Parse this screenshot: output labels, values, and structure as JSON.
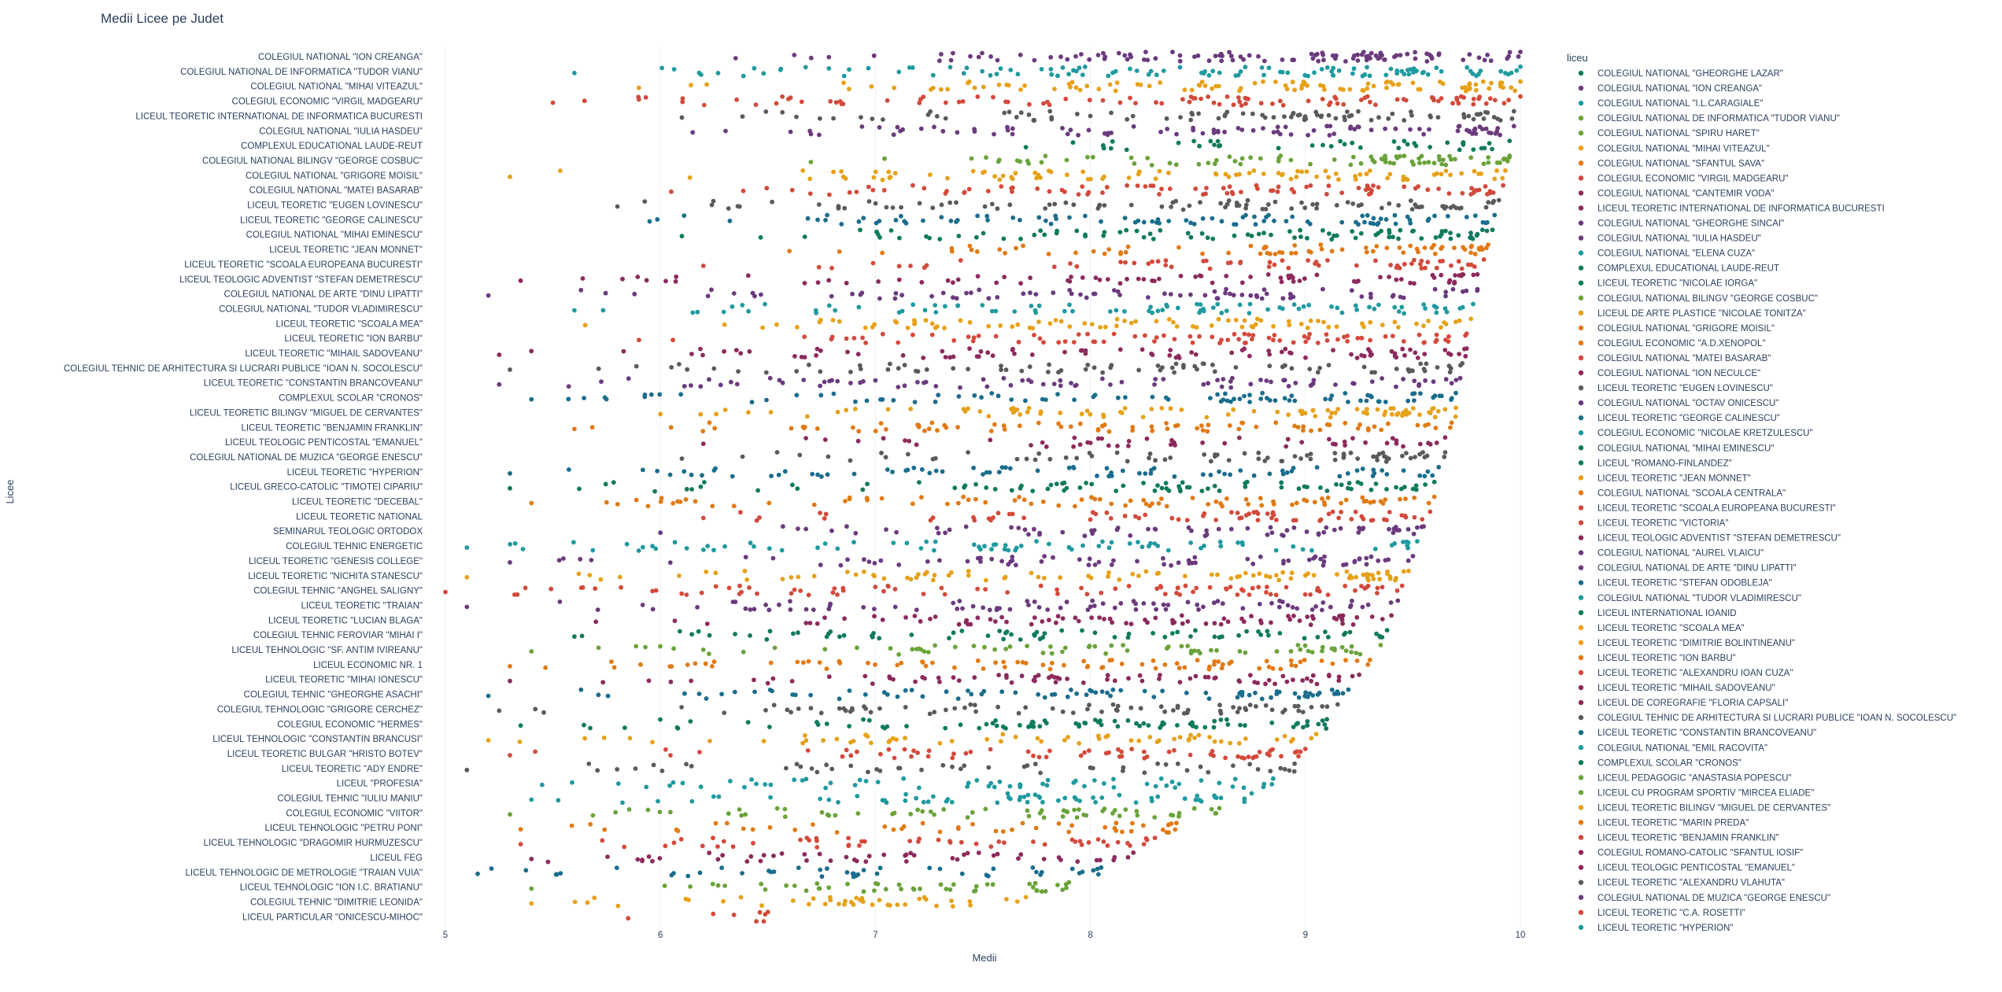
{
  "chart_data": {
    "type": "scatter",
    "title": "Medii Licee pe Judet",
    "xlabel": "Medii",
    "ylabel": "Licee",
    "xlim": [
      5,
      10
    ],
    "xticks": [
      "5",
      "6",
      "7",
      "8",
      "9",
      "10"
    ],
    "grid": "vertical gridlines only",
    "legend_placement": "right",
    "legend_title": "liceu",
    "palette": [
      "#6b3a7d",
      "#1f9aa0",
      "#1a6d8c",
      "#0f7a5c",
      "#6aa33a",
      "#e6a118",
      "#e07a14",
      "#d24a3c",
      "#8c2a5c",
      "#5a5a5a"
    ],
    "categories": [
      "COLEGIUL NATIONAL \"ION CREANGA\"",
      "COLEGIUL NATIONAL DE INFORMATICA \"TUDOR VIANU\"",
      "COLEGIUL NATIONAL \"MIHAI VITEAZUL\"",
      "COLEGIUL ECONOMIC \"VIRGIL MADGEARU\"",
      "LICEUL TEORETIC INTERNATIONAL DE INFORMATICA BUCURESTI",
      "COLEGIUL NATIONAL \"IULIA HASDEU\"",
      "COMPLEXUL EDUCATIONAL LAUDE-REUT",
      "COLEGIUL NATIONAL BILINGV \"GEORGE COSBUC\"",
      "COLEGIUL NATIONAL \"GRIGORE MOISIL\"",
      "COLEGIUL NATIONAL \"MATEI BASARAB\"",
      "LICEUL TEORETIC \"EUGEN LOVINESCU\"",
      "LICEUL TEORETIC \"GEORGE CALINESCU\"",
      "COLEGIUL NATIONAL \"MIHAI EMINESCU\"",
      "LICEUL TEORETIC \"JEAN MONNET\"",
      "LICEUL TEORETIC \"SCOALA EUROPEANA BUCURESTI\"",
      "LICEUL TEOLOGIC ADVENTIST \"STEFAN DEMETRESCU\"",
      "COLEGIUL NATIONAL DE ARTE \"DINU LIPATTI\"",
      "COLEGIUL NATIONAL \"TUDOR VLADIMIRESCU\"",
      "LICEUL TEORETIC \"SCOALA MEA\"",
      "LICEUL TEORETIC \"ION BARBU\"",
      "LICEUL TEORETIC \"MIHAIL SADOVEANU\"",
      "COLEGIUL TEHNIC DE ARHITECTURA SI LUCRARI PUBLICE \"IOAN N. SOCOLESCU\"",
      "LICEUL TEORETIC \"CONSTANTIN BRANCOVEANU\"",
      "COMPLEXUL SCOLAR \"CRONOS\"",
      "LICEUL TEORETIC BILINGV \"MIGUEL DE CERVANTES\"",
      "LICEUL TEORETIC \"BENJAMIN FRANKLIN\"",
      "LICEUL TEOLOGIC PENTICOSTAL \"EMANUEL\"",
      "COLEGIUL NATIONAL DE MUZICA \"GEORGE ENESCU\"",
      "LICEUL TEORETIC \"HYPERION\"",
      "LICEUL GRECO-CATOLIC \"TIMOTEI CIPARIU\"",
      "LICEUL TEORETIC \"DECEBAL\"",
      "LICEUL TEORETIC NATIONAL",
      "SEMINARUL TEOLOGIC ORTODOX",
      "COLEGIUL TEHNIC ENERGETIC",
      "LICEUL TEORETIC \"GENESIS COLLEGE\"",
      "LICEUL TEORETIC \"NICHITA STANESCU\"",
      "COLEGIUL TEHNIC \"ANGHEL SALIGNY\"",
      "LICEUL TEORETIC \"TRAIAN\"",
      "LICEUL TEORETIC \"LUCIAN BLAGA\"",
      "COLEGIUL TEHNIC FEROVIAR \"MIHAI I\"",
      "LICEUL TEHNOLOGIC \"SF. ANTIM IVIREANU\"",
      "LICEUL ECONOMIC NR. 1",
      "LICEUL TEORETIC \"MIHAI IONESCU\"",
      "COLEGIUL TEHNIC \"GHEORGHE ASACHI\"",
      "COLEGIUL TEHNOLOGIC \"GRIGORE CERCHEZ\"",
      "COLEGIUL ECONOMIC \"HERMES\"",
      "LICEUL TEHNOLOGIC \"CONSTANTIN BRANCUSI\"",
      "LICEUL TEORETIC BULGAR \"HRISTO BOTEV\"",
      "LICEUL TEORETIC \"ADY ENDRE\"",
      "LICEUL \"PROFESIA\"",
      "COLEGIUL TEHNIC \"IULIU MANIU\"",
      "COLEGIUL ECONOMIC \"VIITOR\"",
      "LICEUL TEHNOLOGIC \"PETRU PONI\"",
      "LICEUL TEHNOLOGIC \"DRAGOMIR HURMUZESCU\"",
      "LICEUL FEG",
      "LICEUL TEHNOLOGIC DE METROLOGIE \"TRAIAN VUIA\"",
      "LICEUL TEHNOLOGIC \"ION I.C. BRATIANU\"",
      "COLEGIUL TEHNIC \"DIMITRIE LEONIDA\"",
      "LICEUL PARTICULAR \"ONICESCU-MIHOC\""
    ],
    "rows": [
      {
        "c": 0,
        "max": 10.0,
        "min": 6.35,
        "n": 110
      },
      {
        "c": 1,
        "max": 10.0,
        "min": 5.6,
        "n": 110
      },
      {
        "c": 5,
        "max": 10.0,
        "min": 5.9,
        "n": 100
      },
      {
        "c": 7,
        "max": 10.0,
        "min": 5.5,
        "n": 100
      },
      {
        "c": 9,
        "max": 9.97,
        "min": 6.1,
        "n": 90
      },
      {
        "c": 0,
        "max": 9.97,
        "min": 6.15,
        "n": 90
      },
      {
        "c": 3,
        "max": 9.95,
        "min": 7.7,
        "n": 40
      },
      {
        "c": 4,
        "max": 9.95,
        "min": 6.7,
        "n": 80
      },
      {
        "c": 5,
        "max": 9.93,
        "min": 5.3,
        "n": 90
      },
      {
        "c": 7,
        "max": 9.92,
        "min": 6.05,
        "n": 90
      },
      {
        "c": 9,
        "max": 9.9,
        "min": 5.8,
        "n": 90
      },
      {
        "c": 2,
        "max": 9.88,
        "min": 5.95,
        "n": 90
      },
      {
        "c": 3,
        "max": 9.87,
        "min": 6.1,
        "n": 85
      },
      {
        "c": 6,
        "max": 9.85,
        "min": 6.6,
        "n": 70
      },
      {
        "c": 7,
        "max": 9.83,
        "min": 6.2,
        "n": 60
      },
      {
        "c": 8,
        "max": 9.8,
        "min": 5.35,
        "n": 80
      },
      {
        "c": 0,
        "max": 9.8,
        "min": 5.2,
        "n": 80
      },
      {
        "c": 1,
        "max": 9.78,
        "min": 5.6,
        "n": 85
      },
      {
        "c": 5,
        "max": 9.77,
        "min": 5.65,
        "n": 85
      },
      {
        "c": 7,
        "max": 9.75,
        "min": 5.9,
        "n": 85
      },
      {
        "c": 8,
        "max": 9.75,
        "min": 5.25,
        "n": 85
      },
      {
        "c": 9,
        "max": 9.73,
        "min": 5.3,
        "n": 80
      },
      {
        "c": 0,
        "max": 9.72,
        "min": 5.25,
        "n": 85
      },
      {
        "c": 2,
        "max": 9.7,
        "min": 5.4,
        "n": 85
      },
      {
        "c": 5,
        "max": 9.7,
        "min": 6.0,
        "n": 85
      },
      {
        "c": 6,
        "max": 9.68,
        "min": 5.6,
        "n": 80
      },
      {
        "c": 8,
        "max": 9.65,
        "min": 6.2,
        "n": 50
      },
      {
        "c": 9,
        "max": 9.65,
        "min": 6.1,
        "n": 70
      },
      {
        "c": 2,
        "max": 9.62,
        "min": 5.3,
        "n": 80
      },
      {
        "c": 3,
        "max": 9.6,
        "min": 5.3,
        "n": 80
      },
      {
        "c": 6,
        "max": 9.6,
        "min": 5.4,
        "n": 85
      },
      {
        "c": 7,
        "max": 9.58,
        "min": 6.2,
        "n": 70
      },
      {
        "c": 0,
        "max": 9.55,
        "min": 6.0,
        "n": 70
      },
      {
        "c": 1,
        "max": 9.52,
        "min": 5.1,
        "n": 80
      },
      {
        "c": 0,
        "max": 9.5,
        "min": 5.3,
        "n": 75
      },
      {
        "c": 5,
        "max": 9.48,
        "min": 5.1,
        "n": 90
      },
      {
        "c": 7,
        "max": 9.45,
        "min": 5.0,
        "n": 90
      },
      {
        "c": 0,
        "max": 9.43,
        "min": 5.1,
        "n": 85
      },
      {
        "c": 8,
        "max": 9.4,
        "min": 5.7,
        "n": 80
      },
      {
        "c": 3,
        "max": 9.38,
        "min": 5.6,
        "n": 70
      },
      {
        "c": 4,
        "max": 9.35,
        "min": 5.4,
        "n": 70
      },
      {
        "c": 6,
        "max": 9.3,
        "min": 5.3,
        "n": 80
      },
      {
        "c": 8,
        "max": 9.25,
        "min": 5.3,
        "n": 75
      },
      {
        "c": 2,
        "max": 9.2,
        "min": 5.2,
        "n": 80
      },
      {
        "c": 9,
        "max": 9.15,
        "min": 5.25,
        "n": 75
      },
      {
        "c": 3,
        "max": 9.1,
        "min": 5.35,
        "n": 85
      },
      {
        "c": 5,
        "max": 9.05,
        "min": 5.2,
        "n": 60
      },
      {
        "c": 7,
        "max": 9.0,
        "min": 5.3,
        "n": 65
      },
      {
        "c": 9,
        "max": 8.95,
        "min": 5.1,
        "n": 50
      },
      {
        "c": 1,
        "max": 8.85,
        "min": 5.45,
        "n": 60
      },
      {
        "c": 1,
        "max": 8.75,
        "min": 5.4,
        "n": 60
      },
      {
        "c": 4,
        "max": 8.6,
        "min": 5.3,
        "n": 60
      },
      {
        "c": 6,
        "max": 8.4,
        "min": 5.35,
        "n": 45
      },
      {
        "c": 7,
        "max": 8.3,
        "min": 5.35,
        "n": 50
      },
      {
        "c": 8,
        "max": 8.2,
        "min": 5.4,
        "n": 50
      },
      {
        "c": 2,
        "max": 8.05,
        "min": 5.15,
        "n": 45
      },
      {
        "c": 4,
        "max": 7.9,
        "min": 5.4,
        "n": 45
      },
      {
        "c": 5,
        "max": 7.7,
        "min": 5.4,
        "n": 40
      },
      {
        "c": 7,
        "max": 6.5,
        "min": 5.85,
        "n": 6
      }
    ],
    "legend": [
      "COLEGIUL NATIONAL \"GHEORGHE LAZAR\"",
      "COLEGIUL NATIONAL \"ION CREANGA\"",
      "COLEGIUL NATIONAL \"I.L.CARAGIALE\"",
      "COLEGIUL NATIONAL DE INFORMATICA \"TUDOR VIANU\"",
      "COLEGIUL NATIONAL \"SPIRU HARET\"",
      "COLEGIUL NATIONAL \"MIHAI VITEAZUL\"",
      "COLEGIUL NATIONAL \"SFANTUL SAVA\"",
      "COLEGIUL ECONOMIC \"VIRGIL MADGEARU\"",
      "COLEGIUL NATIONAL \"CANTEMIR VODA\"",
      "LICEUL TEORETIC INTERNATIONAL DE INFORMATICA BUCURESTI",
      "COLEGIUL NATIONAL \"GHEORGHE SINCAI\"",
      "COLEGIUL NATIONAL \"IULIA HASDEU\"",
      "COLEGIUL NATIONAL \"ELENA CUZA\"",
      "COMPLEXUL EDUCATIONAL LAUDE-REUT",
      "LICEUL TEORETIC \"NICOLAE IORGA\"",
      "COLEGIUL NATIONAL BILINGV \"GEORGE COSBUC\"",
      "LICEUL DE ARTE PLASTICE \"NICOLAE TONITZA\"",
      "COLEGIUL NATIONAL \"GRIGORE MOISIL\"",
      "COLEGIUL ECONOMIC \"A.D.XENOPOL\"",
      "COLEGIUL NATIONAL \"MATEI BASARAB\"",
      "COLEGIUL NATIONAL \"ION NECULCE\"",
      "LICEUL TEORETIC \"EUGEN LOVINESCU\"",
      "COLEGIUL NATIONAL \"OCTAV ONICESCU\"",
      "LICEUL TEORETIC \"GEORGE CALINESCU\"",
      "COLEGIUL ECONOMIC \"NICOLAE KRETZULESCU\"",
      "COLEGIUL NATIONAL \"MIHAI EMINESCU\"",
      "LICEUL \"ROMANO-FINLANDEZ\"",
      "LICEUL TEORETIC \"JEAN MONNET\"",
      "COLEGIUL NATIONAL \"SCOALA CENTRALA\"",
      "LICEUL TEORETIC \"SCOALA EUROPEANA BUCURESTI\"",
      "LICEUL TEORETIC \"VICTORIA\"",
      "LICEUL TEOLOGIC ADVENTIST \"STEFAN DEMETRESCU\"",
      "COLEGIUL NATIONAL \"AUREL VLAICU\"",
      "COLEGIUL NATIONAL DE ARTE \"DINU LIPATTI\"",
      "LICEUL TEORETIC \"STEFAN ODOBLEJA\"",
      "COLEGIUL NATIONAL \"TUDOR VLADIMIRESCU\"",
      "LICEUL INTERNATIONAL IOANID",
      "LICEUL TEORETIC \"SCOALA MEA\"",
      "LICEUL TEORETIC \"DIMITRIE BOLINTINEANU\"",
      "LICEUL TEORETIC \"ION BARBU\"",
      "LICEUL TEORETIC \"ALEXANDRU IOAN CUZA\"",
      "LICEUL TEORETIC \"MIHAIL SADOVEANU\"",
      "LICEUL DE COREGRAFIE \"FLORIA CAPSALI\"",
      "COLEGIUL TEHNIC DE ARHITECTURA SI LUCRARI PUBLICE \"IOAN N. SOCOLESCU\"",
      "LICEUL TEORETIC \"CONSTANTIN BRANCOVEANU\"",
      "COLEGIUL NATIONAL \"EMIL RACOVITA\"",
      "COMPLEXUL SCOLAR \"CRONOS\"",
      "LICEUL PEDAGOGIC \"ANASTASIA POPESCU\"",
      "LICEUL CU PROGRAM SPORTIV \"MIRCEA ELIADE\"",
      "LICEUL TEORETIC BILINGV \"MIGUEL DE CERVANTES\"",
      "LICEUL TEORETIC \"MARIN PREDA\"",
      "LICEUL TEORETIC \"BENJAMIN FRANKLIN\"",
      "COLEGIUL ROMANO-CATOLIC \"SFANTUL IOSIF\"",
      "LICEUL TEOLOGIC PENTICOSTAL \"EMANUEL\"",
      "LICEUL TEORETIC \"ALEXANDRU VLAHUTA\"",
      "COLEGIUL NATIONAL DE MUZICA \"GEORGE ENESCU\"",
      "LICEUL TEORETIC \"C.A. ROSETTI\"",
      "LICEUL TEORETIC \"HYPERION\""
    ],
    "legend_color_index": [
      3,
      0,
      1,
      4,
      4,
      5,
      6,
      7,
      8,
      8,
      0,
      0,
      1,
      3,
      3,
      4,
      5,
      6,
      6,
      7,
      8,
      9,
      0,
      2,
      1,
      3,
      3,
      5,
      6,
      7,
      7,
      8,
      0,
      0,
      2,
      1,
      3,
      5,
      5,
      6,
      7,
      8,
      8,
      9,
      2,
      1,
      3,
      4,
      4,
      5,
      6,
      7,
      8,
      8,
      9,
      0,
      7,
      1
    ]
  }
}
